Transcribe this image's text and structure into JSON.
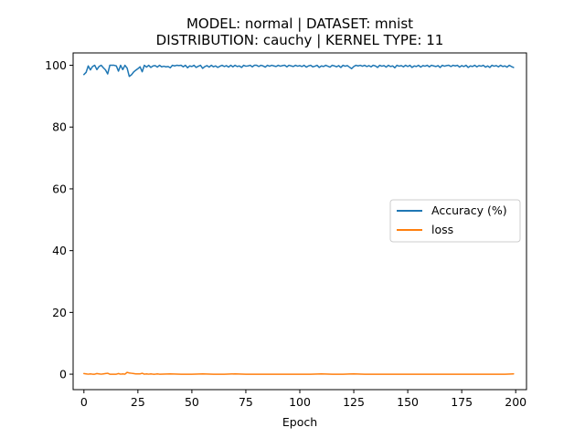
{
  "chart_data": {
    "type": "line",
    "title_line1": "MODEL: normal | DATASET: mnist",
    "title_line2": "DISTRIBUTION: cauchy | KERNEL TYPE: 11",
    "xlabel": "Epoch",
    "ylabel": "",
    "xlim": [
      -5,
      205
    ],
    "ylim": [
      -5,
      104
    ],
    "xticks": [
      0,
      25,
      50,
      75,
      100,
      125,
      150,
      175,
      200
    ],
    "yticks": [
      0,
      20,
      40,
      60,
      80,
      100
    ],
    "legend_position": "center-right",
    "grid": false,
    "series": [
      {
        "name": "Accuracy (%)",
        "color": "#1f77b4",
        "keypoints": [
          [
            0,
            97
          ],
          [
            1,
            97.7
          ],
          [
            2,
            99.8
          ],
          [
            3,
            98.5
          ],
          [
            4,
            99.6
          ],
          [
            5,
            100
          ],
          [
            6,
            98.6
          ],
          [
            7,
            99.6
          ],
          [
            8,
            100
          ],
          [
            9,
            99.2
          ],
          [
            10,
            98.5
          ],
          [
            11,
            97.2
          ],
          [
            12,
            100
          ],
          [
            13,
            100
          ],
          [
            14,
            100
          ],
          [
            15,
            99.8
          ],
          [
            16,
            98.1
          ],
          [
            17,
            100
          ],
          [
            18,
            98.6
          ],
          [
            19,
            100
          ],
          [
            20,
            99.1
          ],
          [
            21,
            96.4
          ],
          [
            22,
            96.9
          ],
          [
            23,
            97.8
          ],
          [
            24,
            98.4
          ],
          [
            25,
            98.9
          ],
          [
            26,
            99.5
          ],
          [
            27,
            97.9
          ],
          [
            28,
            100
          ],
          [
            29,
            99.4
          ],
          [
            30,
            100
          ],
          [
            31,
            99.3
          ],
          [
            32,
            99.8
          ],
          [
            33,
            99.9
          ],
          [
            34,
            99.4
          ],
          [
            35,
            100
          ],
          [
            36,
            99.5
          ],
          [
            37,
            99.7
          ],
          [
            38,
            99.5
          ],
          [
            39,
            99.6
          ],
          [
            40,
            99.2
          ],
          [
            41,
            100
          ],
          [
            42,
            99.8
          ],
          [
            43,
            100
          ],
          [
            44,
            99.9
          ],
          [
            45,
            100
          ],
          [
            46,
            99.5
          ],
          [
            47,
            100
          ],
          [
            48,
            99.2
          ],
          [
            49,
            99.8
          ],
          [
            50,
            99.6
          ],
          [
            51,
            100
          ],
          [
            52,
            99.3
          ],
          [
            53,
            99.7
          ],
          [
            54,
            100
          ],
          [
            55,
            99.0
          ],
          [
            56,
            99.6
          ],
          [
            57,
            99.9
          ],
          [
            58,
            99.4
          ],
          [
            59,
            100
          ],
          [
            60,
            99.5
          ],
          [
            61,
            99.8
          ],
          [
            62,
            99.3
          ],
          [
            63,
            99.7
          ],
          [
            64,
            100
          ],
          [
            65,
            99.6
          ],
          [
            66,
            99.9
          ],
          [
            67,
            99.4
          ],
          [
            68,
            100
          ],
          [
            69,
            99.5
          ],
          [
            70,
            100
          ],
          [
            71,
            99.6
          ],
          [
            72,
            99.8
          ],
          [
            73,
            99.3
          ],
          [
            74,
            100
          ],
          [
            75,
            99.7
          ],
          [
            76,
            99.8
          ],
          [
            77,
            100
          ],
          [
            78,
            99.5
          ],
          [
            79,
            100
          ],
          [
            80,
            100
          ],
          [
            81,
            99.6
          ],
          [
            82,
            100
          ],
          [
            83,
            99.8
          ],
          [
            84,
            99.4
          ],
          [
            85,
            100
          ],
          [
            86,
            99.7
          ],
          [
            87,
            100
          ],
          [
            88,
            99.8
          ],
          [
            89,
            99.6
          ],
          [
            90,
            100
          ],
          [
            91,
            99.7
          ],
          [
            92,
            99.9
          ],
          [
            93,
            100
          ],
          [
            94,
            99.5
          ],
          [
            95,
            100
          ],
          [
            96,
            99.8
          ],
          [
            97,
            99.6
          ],
          [
            98,
            100
          ],
          [
            99,
            99.7
          ],
          [
            100,
            99.9
          ],
          [
            101,
            99.6
          ],
          [
            102,
            100
          ],
          [
            103,
            99.4
          ],
          [
            104,
            99.8
          ],
          [
            105,
            100
          ],
          [
            106,
            99.5
          ],
          [
            107,
            99.7
          ],
          [
            108,
            100
          ],
          [
            109,
            99.3
          ],
          [
            110,
            99.8
          ],
          [
            111,
            99.6
          ],
          [
            112,
            100
          ],
          [
            113,
            99.7
          ],
          [
            114,
            99.4
          ],
          [
            115,
            100
          ],
          [
            116,
            99.8
          ],
          [
            117,
            99.5
          ],
          [
            118,
            99.9
          ],
          [
            119,
            99.3
          ],
          [
            120,
            100
          ],
          [
            121,
            99.7
          ],
          [
            122,
            99.9
          ],
          [
            123,
            99.4
          ],
          [
            124,
            98.9
          ],
          [
            125,
            99.6
          ],
          [
            126,
            100
          ],
          [
            127,
            99.8
          ],
          [
            128,
            100
          ],
          [
            129,
            99.7
          ],
          [
            130,
            100
          ],
          [
            131,
            99.6
          ],
          [
            132,
            99.9
          ],
          [
            133,
            99.5
          ],
          [
            134,
            100
          ],
          [
            135,
            99.8
          ],
          [
            136,
            99.3
          ],
          [
            137,
            100
          ],
          [
            138,
            99.7
          ],
          [
            139,
            99.9
          ],
          [
            140,
            99.4
          ],
          [
            141,
            100
          ],
          [
            142,
            99.6
          ],
          [
            143,
            99.8
          ],
          [
            144,
            99.2
          ],
          [
            145,
            100
          ],
          [
            146,
            99.7
          ],
          [
            147,
            99.9
          ],
          [
            148,
            99.5
          ],
          [
            149,
            100
          ],
          [
            150,
            99.6
          ],
          [
            151,
            100
          ],
          [
            152,
            99.3
          ],
          [
            153,
            99.8
          ],
          [
            154,
            99.6
          ],
          [
            155,
            100
          ],
          [
            156,
            99.4
          ],
          [
            157,
            99.9
          ],
          [
            158,
            99.7
          ],
          [
            159,
            100
          ],
          [
            160,
            99.5
          ],
          [
            161,
            100
          ],
          [
            162,
            99.8
          ],
          [
            163,
            99.6
          ],
          [
            164,
            99.9
          ],
          [
            165,
            99.3
          ],
          [
            166,
            100
          ],
          [
            167,
            99.7
          ],
          [
            168,
            99.9
          ],
          [
            169,
            100
          ],
          [
            170,
            99.6
          ],
          [
            171,
            100
          ],
          [
            172,
            99.8
          ],
          [
            173,
            100
          ],
          [
            174,
            99.4
          ],
          [
            175,
            99.9
          ],
          [
            176,
            99.6
          ],
          [
            177,
            100
          ],
          [
            178,
            99.3
          ],
          [
            179,
            99.8
          ],
          [
            180,
            99.6
          ],
          [
            181,
            100
          ],
          [
            182,
            99.5
          ],
          [
            183,
            99.9
          ],
          [
            184,
            99.7
          ],
          [
            185,
            100
          ],
          [
            186,
            99.4
          ],
          [
            187,
            99.8
          ],
          [
            188,
            99.3
          ],
          [
            189,
            100
          ],
          [
            190,
            99.7
          ],
          [
            191,
            99.9
          ],
          [
            192,
            99.5
          ],
          [
            193,
            100
          ],
          [
            194,
            99.6
          ],
          [
            195,
            99.8
          ],
          [
            196,
            99.4
          ],
          [
            197,
            100
          ],
          [
            198,
            99.6
          ],
          [
            199,
            99.3
          ]
        ]
      },
      {
        "name": "loss",
        "color": "#ff7f0e",
        "keypoints": [
          [
            0,
            0.2
          ],
          [
            1,
            0.1
          ],
          [
            2,
            0.0
          ],
          [
            3,
            0.1
          ],
          [
            4,
            0.0
          ],
          [
            5,
            0.0
          ],
          [
            6,
            0.2
          ],
          [
            7,
            0.1
          ],
          [
            8,
            0.0
          ],
          [
            9,
            0.1
          ],
          [
            10,
            0.2
          ],
          [
            11,
            0.3
          ],
          [
            12,
            0.0
          ],
          [
            13,
            0.0
          ],
          [
            14,
            0.0
          ],
          [
            15,
            0.0
          ],
          [
            16,
            0.2
          ],
          [
            17,
            0.0
          ],
          [
            18,
            0.1
          ],
          [
            19,
            0.0
          ],
          [
            20,
            0.6
          ],
          [
            21,
            0.4
          ],
          [
            22,
            0.3
          ],
          [
            23,
            0.2
          ],
          [
            24,
            0.1
          ],
          [
            25,
            0.1
          ],
          [
            26,
            0.1
          ],
          [
            27,
            0.3
          ],
          [
            28,
            0.0
          ],
          [
            29,
            0.1
          ],
          [
            30,
            0.0
          ],
          [
            31,
            0.1
          ],
          [
            32,
            0.0
          ],
          [
            33,
            0.0
          ],
          [
            34,
            0.1
          ],
          [
            35,
            0.0
          ],
          [
            40,
            0.1
          ],
          [
            45,
            0.0
          ],
          [
            50,
            0.0
          ],
          [
            55,
            0.1
          ],
          [
            60,
            0.0
          ],
          [
            65,
            0.0
          ],
          [
            70,
            0.1
          ],
          [
            75,
            0.0
          ],
          [
            80,
            0.0
          ],
          [
            85,
            0.0
          ],
          [
            90,
            0.0
          ],
          [
            95,
            0.0
          ],
          [
            100,
            0.0
          ],
          [
            105,
            0.0
          ],
          [
            110,
            0.1
          ],
          [
            115,
            0.0
          ],
          [
            120,
            0.0
          ],
          [
            125,
            0.1
          ],
          [
            130,
            0.0
          ],
          [
            135,
            0.0
          ],
          [
            140,
            0.0
          ],
          [
            145,
            0.0
          ],
          [
            150,
            0.0
          ],
          [
            155,
            0.0
          ],
          [
            160,
            0.0
          ],
          [
            165,
            0.0
          ],
          [
            170,
            0.0
          ],
          [
            175,
            0.0
          ],
          [
            180,
            0.0
          ],
          [
            185,
            0.0
          ],
          [
            190,
            0.0
          ],
          [
            195,
            0.0
          ],
          [
            199,
            0.1
          ]
        ]
      }
    ]
  }
}
